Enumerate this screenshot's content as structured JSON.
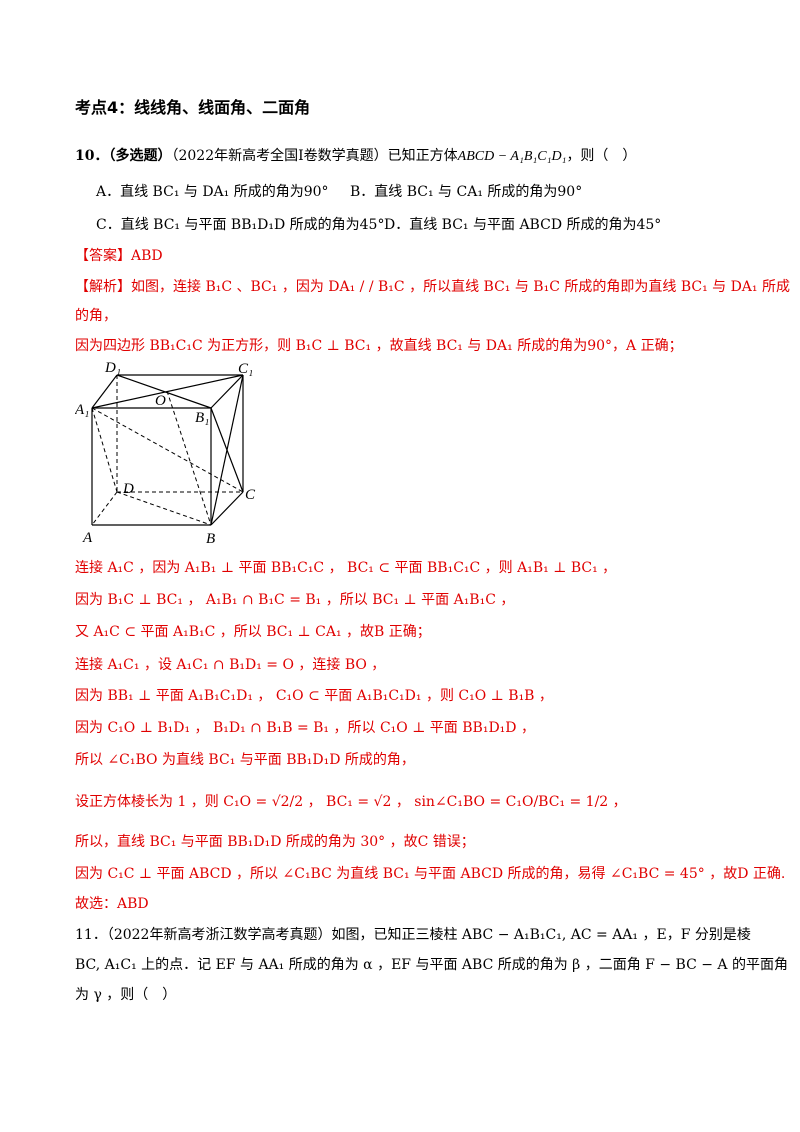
{
  "heading": "考点4：线线角、线面角、二面角",
  "q10": {
    "number": "10．",
    "tag": "（多选题）",
    "source": "（2022年新高考全国I卷数学真题）已知正方体",
    "cube": "ABCD − A₁B₁C₁D₁",
    "tail": "，则（　）",
    "options": [
      "A．直线 BC₁ 与 DA₁ 所成的角为90°",
      "B．直线 BC₁ 与 CA₁ 所成的角为90°",
      "C．直线 BC₁ 与平面 BB₁D₁D 所成的角为45°",
      "D．直线 BC₁ 与平面 ABCD 所成的角为45°"
    ]
  },
  "answer": "【答案】ABD",
  "analysis_lines": [
    "【解析】如图，连接 B₁C 、BC₁ ，因为 DA₁ / / B₁C ，所以直线 BC₁ 与 B₁C 所成的角即为直线 BC₁ 与 DA₁ 所成",
    "的角，",
    "因为四边形 BB₁C₁C 为正方形，则 B₁C ⊥ BC₁ ，故直线 BC₁ 与 DA₁ 所成的角为90°，A 正确；"
  ],
  "figure_labels": [
    "D₁",
    "C₁",
    "O",
    "A₁",
    "B₁",
    "D",
    "C",
    "A",
    "B"
  ],
  "analysis_lines_2": [
    "连接 A₁C ，因为 A₁B₁ ⊥ 平面 BB₁C₁C ， BC₁ ⊂ 平面 BB₁C₁C ，则 A₁B₁ ⊥ BC₁ ，",
    "因为 B₁C ⊥ BC₁ ， A₁B₁ ∩ B₁C = B₁ ，所以 BC₁ ⊥ 平面 A₁B₁C ，",
    "又 A₁C ⊂ 平面 A₁B₁C ，所以 BC₁ ⊥ CA₁ ，故B 正确；",
    "连接 A₁C₁ ，设 A₁C₁ ∩ B₁D₁ = O ，连接 BO ，",
    "因为 BB₁ ⊥ 平面 A₁B₁C₁D₁ ， C₁O ⊂ 平面 A₁B₁C₁D₁ ，则 C₁O ⊥ B₁B ，",
    "因为 C₁O ⊥ B₁D₁ ， B₁D₁ ∩ B₁B = B₁ ，所以 C₁O ⊥ 平面 BB₁D₁D ，",
    "所以 ∠C₁BO 为直线 BC₁ 与平面 BB₁D₁D 所成的角，",
    "设正方体棱长为 1 ，则 C₁O = √2/2 ， BC₁ = √2 ， sin∠C₁BO = C₁O/BC₁ = 1/2 ，",
    "所以，直线 BC₁ 与平面 BB₁D₁D 所成的角为 30° ，故C 错误；",
    "因为 C₁C ⊥ 平面 ABCD ，所以 ∠C₁BC 为直线 BC₁ 与平面 ABCD 所成的角，易得 ∠C₁BC = 45° ，故D 正确.",
    "故选：ABD"
  ],
  "q11": [
    "11．（2022年新高考浙江数学高考真题）如图，已知正三棱柱 ABC − A₁B₁C₁, AC = AA₁ ，E，F 分别是棱",
    "BC, A₁C₁ 上的点．记 EF 与 AA₁ 所成的角为 α ，EF 与平面 ABC 所成的角为 β ，二面角 F − BC − A 的平面角",
    "为 γ ，则（　）"
  ]
}
